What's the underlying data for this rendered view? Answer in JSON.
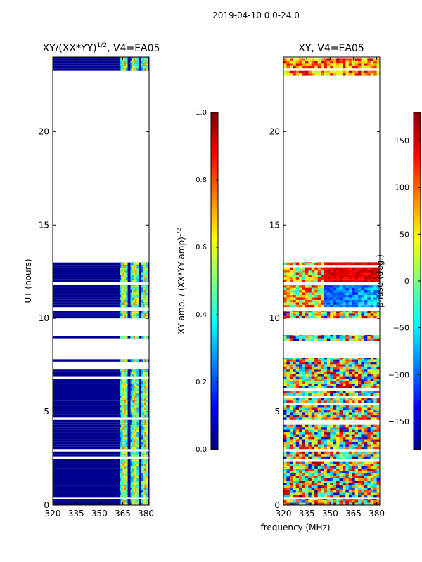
{
  "figure": {
    "suptitle": "2019-04-10 0.0-24.0",
    "shared_xlabel": "frequency (MHz)"
  },
  "chart_data": [
    {
      "type": "heatmap",
      "title": "XY/(XX*YY)^(1/2), V4=EA05",
      "title_main": "XY/(XX*YY)",
      "title_sup": "1/2",
      "title_tail": ", V4=EA05",
      "xlabel": "",
      "ylabel": "UT (hours)",
      "xlim": [
        320,
        382
      ],
      "ylim": [
        0,
        24
      ],
      "x_ticks": [
        320,
        335,
        350,
        365,
        380
      ],
      "y_ticks": [
        0,
        5,
        10,
        15,
        20
      ],
      "colorbar": {
        "label": "XY amp. / (XX*YY amp)^(1/2)",
        "label_main": "XY amp. / (XX*YY amp)",
        "label_sup": "1/2",
        "range": [
          0.0,
          1.0
        ],
        "ticks": [
          "0.0",
          "0.2",
          "0.4",
          "0.6",
          "0.8",
          "1.0"
        ],
        "tick_values": [
          0.0,
          0.2,
          0.4,
          0.6,
          0.8,
          1.0
        ],
        "colormap": "jet"
      },
      "data_bands_hours": [
        [
          0.0,
          0.3
        ],
        [
          0.4,
          7.9
        ],
        [
          8.8,
          9.1
        ],
        [
          10.0,
          10.4
        ],
        [
          10.6,
          11.8
        ],
        [
          11.95,
          13.0
        ],
        [
          23.0,
          24.0
        ]
      ],
      "bright_freq_ranges_mhz": [
        [
          363,
          368
        ],
        [
          370,
          375
        ],
        [
          377,
          381
        ]
      ],
      "background_value": 0.0
    },
    {
      "type": "heatmap",
      "title": "XY, V4=EA05",
      "xlabel": "frequency (MHz)",
      "ylabel": "",
      "xlim": [
        320,
        382
      ],
      "ylim": [
        0,
        24
      ],
      "x_ticks": [
        320,
        335,
        350,
        365,
        380
      ],
      "y_ticks": [
        0,
        5,
        10,
        15,
        20
      ],
      "colorbar": {
        "label": "phase (deg.)",
        "range": [
          -180,
          180
        ],
        "ticks": [
          "150",
          "100",
          "50",
          "0",
          "−50",
          "−100",
          "−150"
        ],
        "tick_values": [
          150,
          100,
          50,
          0,
          -50,
          -100,
          -150
        ],
        "colormap": "jet"
      },
      "data_bands_hours": [
        [
          0.0,
          0.3
        ],
        [
          0.4,
          7.9
        ],
        [
          8.8,
          9.1
        ],
        [
          10.0,
          10.4
        ],
        [
          10.6,
          11.8
        ],
        [
          11.95,
          13.0
        ],
        [
          23.0,
          24.0
        ]
      ]
    }
  ],
  "colors": {
    "jet_stops": [
      "#00007f",
      "#0000ff",
      "#007fff",
      "#00ffff",
      "#7fff7f",
      "#ffff00",
      "#ff7f00",
      "#ff0000",
      "#7f0000"
    ],
    "axis": "#000000",
    "background": "#ffffff",
    "masked": "#00008b"
  }
}
